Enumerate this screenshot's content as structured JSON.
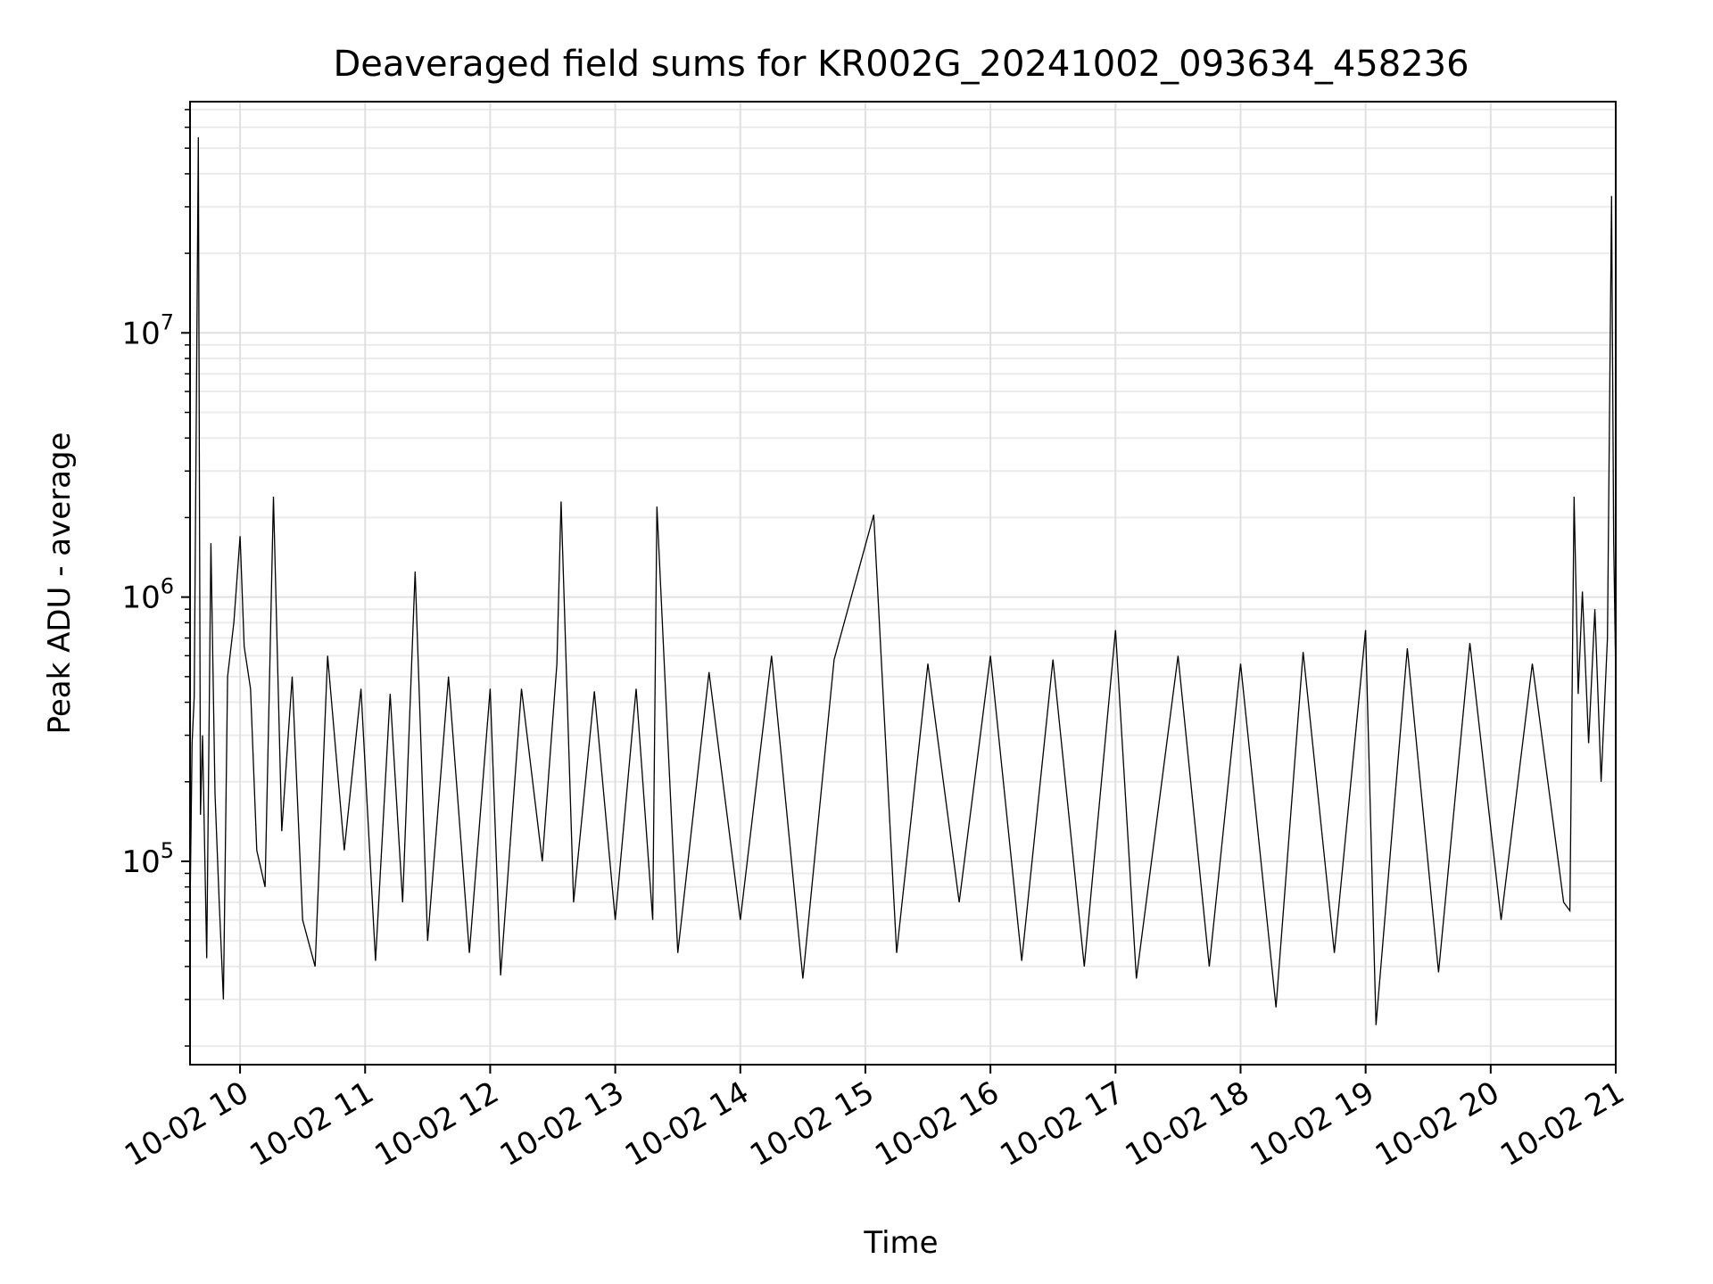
{
  "chart_data": {
    "type": "line",
    "title": "Deaveraged field sums for KR002G_20241002_093634_458236",
    "xlabel": "Time",
    "ylabel": "Peak ADU - average",
    "x_axis": {
      "kind": "datetime",
      "range": [
        "2024-10-02 09:36",
        "2024-10-02 21:00"
      ]
    },
    "y_axis": {
      "scale": "log",
      "range": [
        17000,
        75000000
      ]
    },
    "grid": true,
    "line_color": "#000000",
    "x_ticks": [
      {
        "label": "10-02 10",
        "t": "2024-10-02 10:00"
      },
      {
        "label": "10-02 11",
        "t": "2024-10-02 11:00"
      },
      {
        "label": "10-02 12",
        "t": "2024-10-02 12:00"
      },
      {
        "label": "10-02 13",
        "t": "2024-10-02 13:00"
      },
      {
        "label": "10-02 14",
        "t": "2024-10-02 14:00"
      },
      {
        "label": "10-02 15",
        "t": "2024-10-02 15:00"
      },
      {
        "label": "10-02 16",
        "t": "2024-10-02 16:00"
      },
      {
        "label": "10-02 17",
        "t": "2024-10-02 17:00"
      },
      {
        "label": "10-02 18",
        "t": "2024-10-02 18:00"
      },
      {
        "label": "10-02 19",
        "t": "2024-10-02 19:00"
      },
      {
        "label": "10-02 20",
        "t": "2024-10-02 20:00"
      },
      {
        "label": "10-02 21",
        "t": "2024-10-02 21:00"
      }
    ],
    "y_ticks": [
      {
        "base": "10",
        "exp": "5",
        "value": 100000
      },
      {
        "base": "10",
        "exp": "6",
        "value": 1000000
      },
      {
        "base": "10",
        "exp": "7",
        "value": 10000000
      }
    ],
    "series": [
      {
        "values": [
          [
            "2024-10-02 09:36",
            65000
          ],
          [
            "2024-10-02 09:37",
            280000
          ],
          [
            "2024-10-02 09:38",
            420000
          ],
          [
            "2024-10-02 09:40",
            55000000
          ],
          [
            "2024-10-02 09:41",
            150000
          ],
          [
            "2024-10-02 09:42",
            300000
          ],
          [
            "2024-10-02 09:44",
            43000
          ],
          [
            "2024-10-02 09:46",
            1600000
          ],
          [
            "2024-10-02 09:48",
            180000
          ],
          [
            "2024-10-02 09:50",
            70000
          ],
          [
            "2024-10-02 09:52",
            30000
          ],
          [
            "2024-10-02 09:54",
            500000
          ],
          [
            "2024-10-02 09:57",
            800000
          ],
          [
            "2024-10-02 10:00",
            1700000
          ],
          [
            "2024-10-02 10:02",
            650000
          ],
          [
            "2024-10-02 10:05",
            450000
          ],
          [
            "2024-10-02 10:08",
            110000
          ],
          [
            "2024-10-02 10:12",
            80000
          ],
          [
            "2024-10-02 10:16",
            2400000
          ],
          [
            "2024-10-02 10:20",
            130000
          ],
          [
            "2024-10-02 10:25",
            500000
          ],
          [
            "2024-10-02 10:30",
            60000
          ],
          [
            "2024-10-02 10:36",
            40000
          ],
          [
            "2024-10-02 10:42",
            600000
          ],
          [
            "2024-10-02 10:50",
            110000
          ],
          [
            "2024-10-02 10:58",
            450000
          ],
          [
            "2024-10-02 11:05",
            42000
          ],
          [
            "2024-10-02 11:12",
            430000
          ],
          [
            "2024-10-02 11:18",
            70000
          ],
          [
            "2024-10-02 11:24",
            1250000
          ],
          [
            "2024-10-02 11:30",
            50000
          ],
          [
            "2024-10-02 11:40",
            500000
          ],
          [
            "2024-10-02 11:50",
            45000
          ],
          [
            "2024-10-02 12:00",
            450000
          ],
          [
            "2024-10-02 12:05",
            37000
          ],
          [
            "2024-10-02 12:15",
            450000
          ],
          [
            "2024-10-02 12:25",
            100000
          ],
          [
            "2024-10-02 12:32",
            560000
          ],
          [
            "2024-10-02 12:34",
            2300000
          ],
          [
            "2024-10-02 12:40",
            70000
          ],
          [
            "2024-10-02 12:50",
            440000
          ],
          [
            "2024-10-02 13:00",
            60000
          ],
          [
            "2024-10-02 13:10",
            450000
          ],
          [
            "2024-10-02 13:18",
            60000
          ],
          [
            "2024-10-02 13:20",
            2200000
          ],
          [
            "2024-10-02 13:30",
            45000
          ],
          [
            "2024-10-02 13:45",
            520000
          ],
          [
            "2024-10-02 14:00",
            60000
          ],
          [
            "2024-10-02 14:15",
            600000
          ],
          [
            "2024-10-02 14:30",
            36000
          ],
          [
            "2024-10-02 14:45",
            580000
          ],
          [
            "2024-10-02 15:04",
            2050000
          ],
          [
            "2024-10-02 15:15",
            45000
          ],
          [
            "2024-10-02 15:30",
            560000
          ],
          [
            "2024-10-02 15:45",
            70000
          ],
          [
            "2024-10-02 16:00",
            600000
          ],
          [
            "2024-10-02 16:15",
            42000
          ],
          [
            "2024-10-02 16:30",
            580000
          ],
          [
            "2024-10-02 16:45",
            40000
          ],
          [
            "2024-10-02 17:00",
            750000
          ],
          [
            "2024-10-02 17:10",
            36000
          ],
          [
            "2024-10-02 17:30",
            600000
          ],
          [
            "2024-10-02 17:45",
            40000
          ],
          [
            "2024-10-02 18:00",
            560000
          ],
          [
            "2024-10-02 18:17",
            28000
          ],
          [
            "2024-10-02 18:30",
            620000
          ],
          [
            "2024-10-02 18:45",
            45000
          ],
          [
            "2024-10-02 19:00",
            750000
          ],
          [
            "2024-10-02 19:05",
            24000
          ],
          [
            "2024-10-02 19:20",
            640000
          ],
          [
            "2024-10-02 19:35",
            38000
          ],
          [
            "2024-10-02 19:50",
            670000
          ],
          [
            "2024-10-02 20:05",
            60000
          ],
          [
            "2024-10-02 20:20",
            560000
          ],
          [
            "2024-10-02 20:35",
            70000
          ],
          [
            "2024-10-02 20:38",
            65000
          ],
          [
            "2024-10-02 20:40",
            2400000
          ],
          [
            "2024-10-02 20:42",
            430000
          ],
          [
            "2024-10-02 20:44",
            1050000
          ],
          [
            "2024-10-02 20:47",
            280000
          ],
          [
            "2024-10-02 20:50",
            900000
          ],
          [
            "2024-10-02 20:53",
            200000
          ],
          [
            "2024-10-02 20:56",
            700000
          ],
          [
            "2024-10-02 20:58",
            33000000
          ],
          [
            "2024-10-02 20:59",
            1600000
          ],
          [
            "2024-10-02 21:00",
            500000
          ]
        ]
      }
    ]
  }
}
